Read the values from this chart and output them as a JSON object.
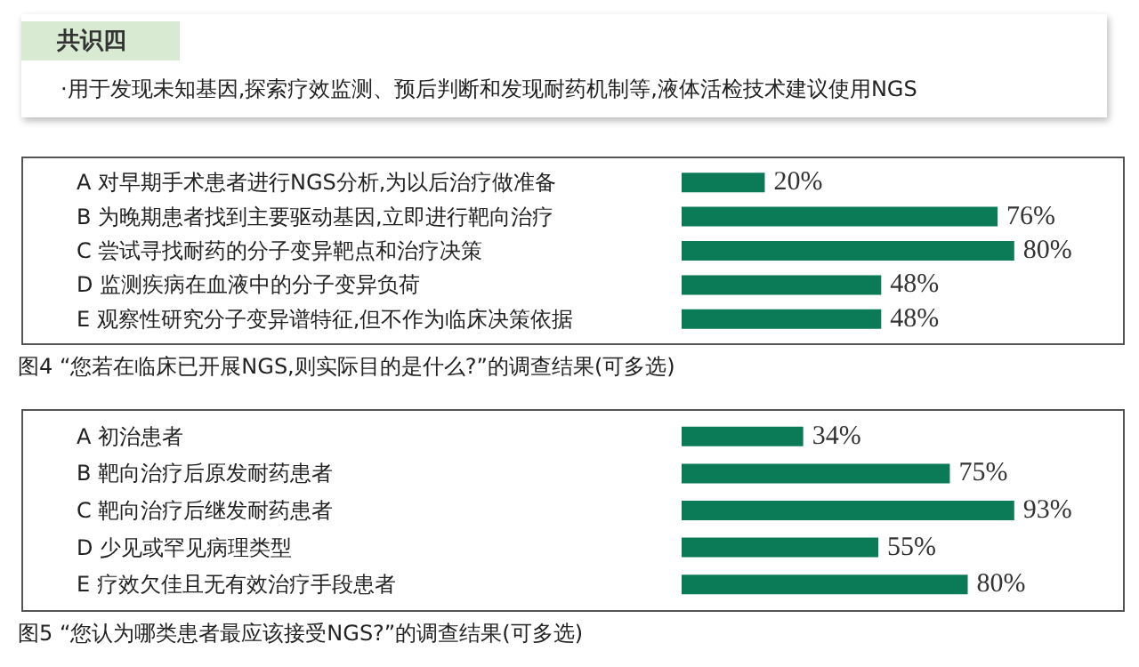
{
  "chart_data": [
    {
      "type": "bar",
      "orientation": "horizontal",
      "title": "共识四",
      "subtitle": "·用于发现未知基因,探索疗效监测、预后判断和发现耐药机制等,液体活检技术建议使用NGS",
      "categories": [
        "A 对早期手术患者进行NGS分析,为以后治疗做准备",
        "B 为晚期患者找到主要驱动基因,立即进行靶向治疗",
        "C 尝试寻找耐药的分子变异靶点和治疗决策",
        "D 监测疾病在血液中的分子变异负荷",
        "E 观察性研究分子变异谱特征,但不作为临床决策依据"
      ],
      "values": [
        20,
        76,
        80,
        48,
        48
      ],
      "value_labels": [
        "20%",
        "76%",
        "80%",
        "48%",
        "48%"
      ],
      "color": "#0b7a56",
      "annotations": [
        "图4 “您若在临床已开展NGS,则实际目的是什么?”的调查结果(可多选)"
      ]
    },
    {
      "type": "bar",
      "orientation": "horizontal",
      "categories": [
        "A 初治患者",
        "B 靶向治疗后原发耐药患者",
        "C 靶向治疗后继发耐药患者",
        "D 少见或罕见病理类型",
        "E 疗效欠佳且无有效治疗手段患者"
      ],
      "values": [
        34,
        75,
        93,
        55,
        80
      ],
      "value_labels": [
        "34%",
        "75%",
        "93%",
        "55%",
        "80%"
      ],
      "color": "#0b7a56",
      "annotations": [
        "图5 “您认为哪类患者最应该接受NGS?”的调查结果(可多选)"
      ]
    }
  ]
}
